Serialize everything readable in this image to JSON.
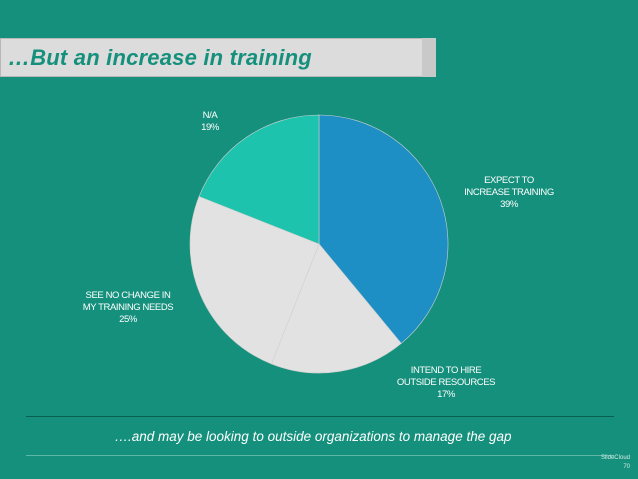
{
  "title": "…But an increase in training",
  "subtitle": "….and may be looking to outside organizations to manage the gap",
  "brand": "SlideCloud",
  "page_number": "70",
  "colors": {
    "background": "#15907c",
    "title_text": "#15907c",
    "title_bar": "#dcdcdc"
  },
  "chart_data": {
    "type": "pie",
    "slices": [
      {
        "label_lines": [
          "EXPECT TO",
          "INCREASE TRAINING",
          "39%"
        ],
        "value": 39,
        "color": "#1e8fc4"
      },
      {
        "label_lines": [
          "INTEND TO HIRE",
          "OUTSIDE RESOURCES",
          "17%"
        ],
        "value": 17,
        "color": "#e2e2e2"
      },
      {
        "label_lines": [
          "SEE NO CHANGE IN",
          "MY TRAINING NEEDS",
          "25%"
        ],
        "value": 25,
        "color": "#e2e2e2"
      },
      {
        "label_lines": [
          "N/A",
          "19%"
        ],
        "value": 19,
        "color": "#1dc3ad"
      }
    ]
  }
}
